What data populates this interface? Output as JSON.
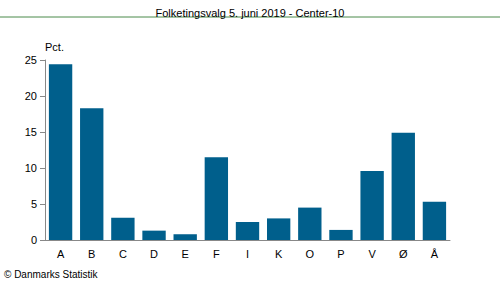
{
  "chart_data": {
    "type": "bar",
    "title": "Folketingsvalg 5. juni 2019 - Center-10",
    "y_label": "Pct.",
    "source": "© Danmarks Statistik",
    "categories": [
      "A",
      "B",
      "C",
      "D",
      "E",
      "F",
      "I",
      "K",
      "O",
      "P",
      "V",
      "Ø",
      "Å"
    ],
    "values": [
      24.4,
      18.3,
      3.1,
      1.3,
      0.8,
      11.5,
      2.5,
      3.0,
      4.5,
      1.4,
      9.6,
      14.9,
      5.3
    ],
    "color": "#005f8c",
    "ylim": [
      0,
      25
    ],
    "yticks": [
      0,
      5,
      10,
      15,
      20,
      25
    ],
    "grid": false
  }
}
